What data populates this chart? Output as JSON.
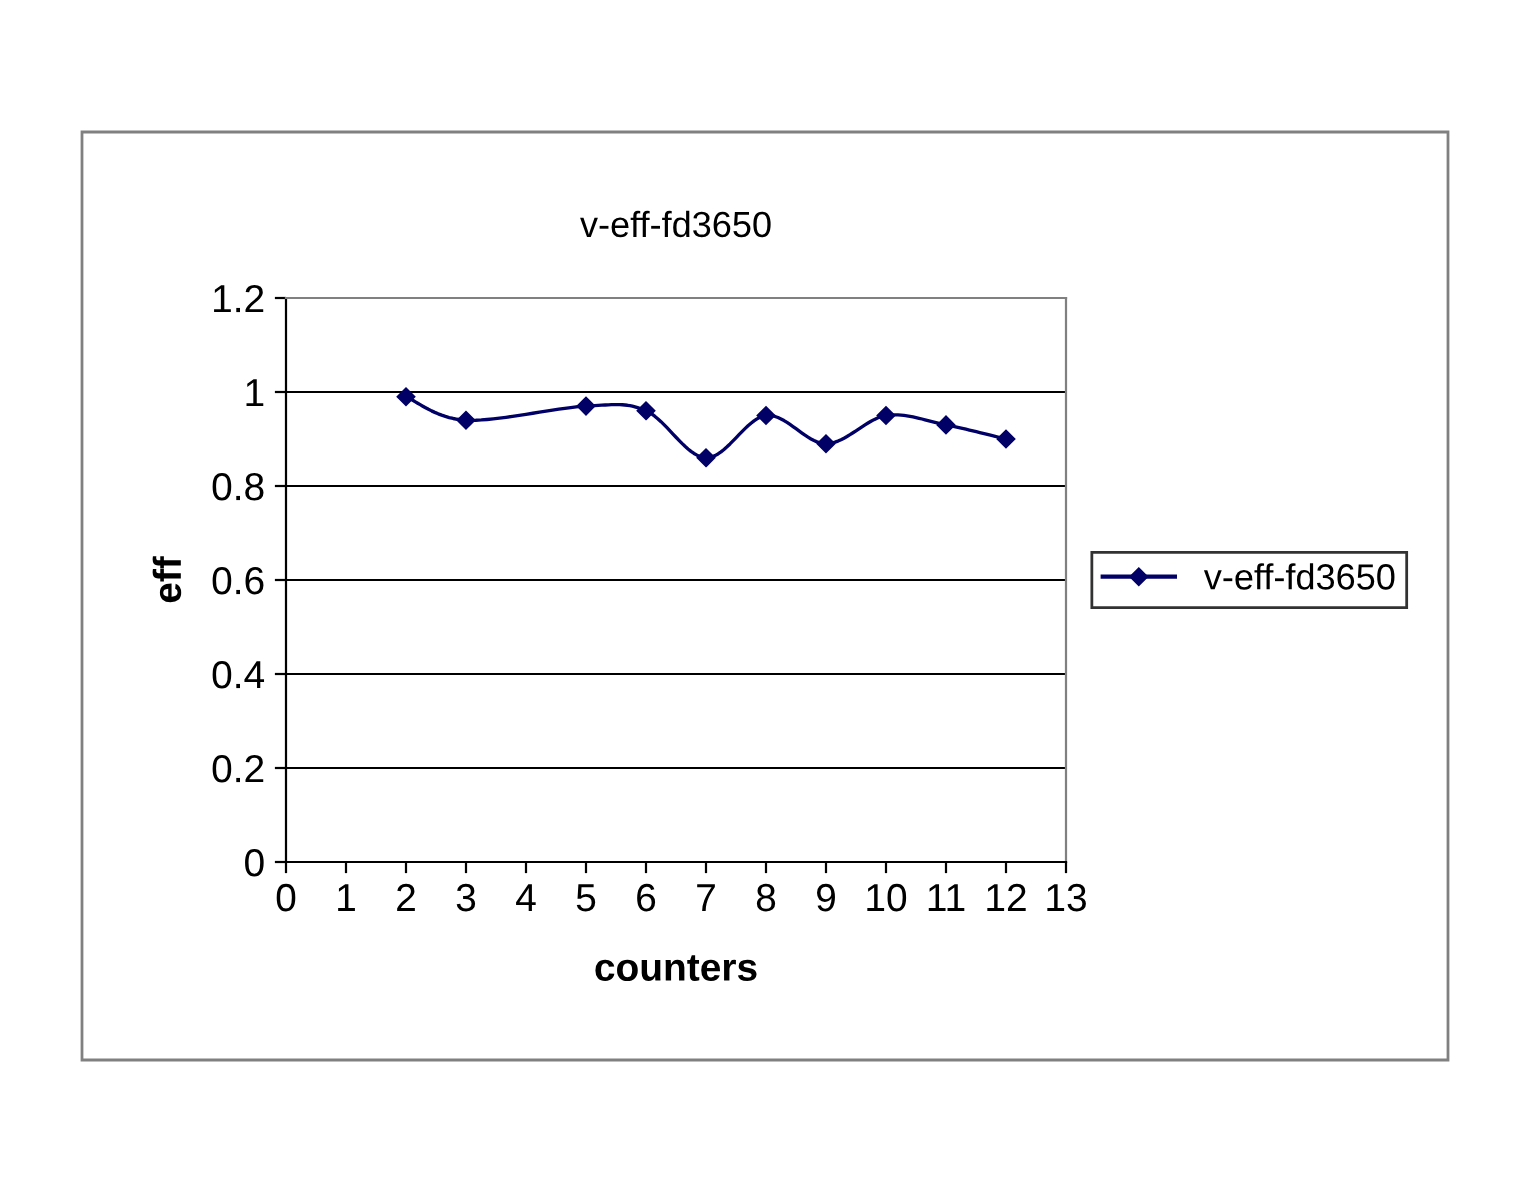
{
  "chart_data": {
    "type": "line",
    "title": "v-eff-fd3650",
    "xlabel": "counters",
    "ylabel": "eff",
    "x": [
      2,
      3,
      5,
      6,
      7,
      8,
      9,
      10,
      11,
      12
    ],
    "series": [
      {
        "name": "v-eff-fd3650",
        "color": "#000066",
        "values": [
          0.99,
          0.94,
          0.97,
          0.96,
          0.86,
          0.95,
          0.89,
          0.95,
          0.93,
          0.9
        ]
      }
    ],
    "xlim": [
      0,
      13
    ],
    "xticks": [
      0,
      1,
      2,
      3,
      4,
      5,
      6,
      7,
      8,
      9,
      10,
      11,
      12,
      13
    ],
    "ylim": [
      0,
      1.2
    ],
    "yticks": [
      0,
      0.2,
      0.4,
      0.6,
      0.8,
      1,
      1.2
    ],
    "grid": "y",
    "legend": "right",
    "marker": "diamond",
    "line_style": "solid"
  }
}
